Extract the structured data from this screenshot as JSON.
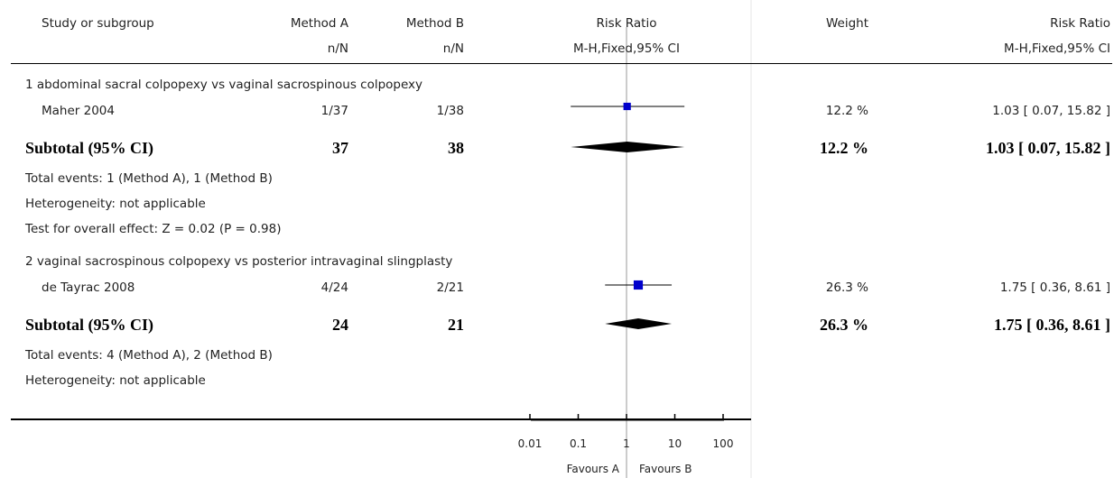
{
  "header": {
    "study_col": "Study or subgroup",
    "method_a": "Method A",
    "method_b": "Method B",
    "nn_a": "n/N",
    "nn_b": "n/N",
    "rr_plot": "Risk Ratio",
    "rr_plot_sub": "M-H,Fixed,95% CI",
    "weight": "Weight",
    "rr_text": "Risk Ratio",
    "rr_text_sub": "M-H,Fixed,95% CI"
  },
  "groups": [
    {
      "title": "1 abdominal sacral colpopexy vs vaginal sacrospinous colpopexy",
      "study": {
        "name": "Maher 2004",
        "a": "1/37",
        "b": "1/38",
        "weight": "12.2 %",
        "ci_text": "1.03 [ 0.07, 15.82 ]"
      },
      "subtotal": {
        "label": "Subtotal (95% CI)",
        "a": "37",
        "b": "38",
        "weight": "12.2 %",
        "ci_text": "1.03 [ 0.07, 15.82 ]"
      },
      "notes": [
        "Total events: 1 (Method A), 1 (Method B)",
        "Heterogeneity: not applicable",
        "Test for overall effect: Z = 0.02 (P = 0.98)"
      ]
    },
    {
      "title": "2 vaginal sacrospinous colpopexy vs posterior intravaginal slingplasty",
      "study": {
        "name": "de Tayrac 2008",
        "a": "4/24",
        "b": "2/21",
        "weight": "26.3 %",
        "ci_text": "1.75 [ 0.36, 8.61 ]"
      },
      "subtotal": {
        "label": "Subtotal (95% CI)",
        "a": "24",
        "b": "21",
        "weight": "26.3 %",
        "ci_text": "1.75 [ 0.36, 8.61 ]"
      },
      "notes": [
        "Total events: 4 (Method A), 2 (Method B)",
        "Heterogeneity: not applicable"
      ]
    }
  ],
  "axis": {
    "ticks": [
      "0.01",
      "0.1",
      "1",
      "10",
      "100"
    ],
    "favours_a": "Favours A",
    "favours_b": "Favours B"
  },
  "colors": {
    "marker": "#0000cc",
    "diamond": "#000000",
    "line": "#000000",
    "ref_line": "#999999"
  },
  "chart_data": {
    "type": "forest",
    "scale": "log",
    "xlim": [
      0.01,
      100
    ],
    "ticks": [
      0.01,
      0.1,
      1,
      10,
      100
    ],
    "studies": [
      {
        "name": "Maher 2004",
        "rr": 1.03,
        "lo": 0.07,
        "hi": 15.82,
        "weight": 12.2
      },
      {
        "name": "de Tayrac 2008",
        "rr": 1.75,
        "lo": 0.36,
        "hi": 8.61,
        "weight": 26.3
      }
    ],
    "subtotals": [
      {
        "label": "Subtotal (95% CI)",
        "rr": 1.03,
        "lo": 0.07,
        "hi": 15.82
      },
      {
        "label": "Subtotal (95% CI)",
        "rr": 1.75,
        "lo": 0.36,
        "hi": 8.61
      }
    ]
  }
}
